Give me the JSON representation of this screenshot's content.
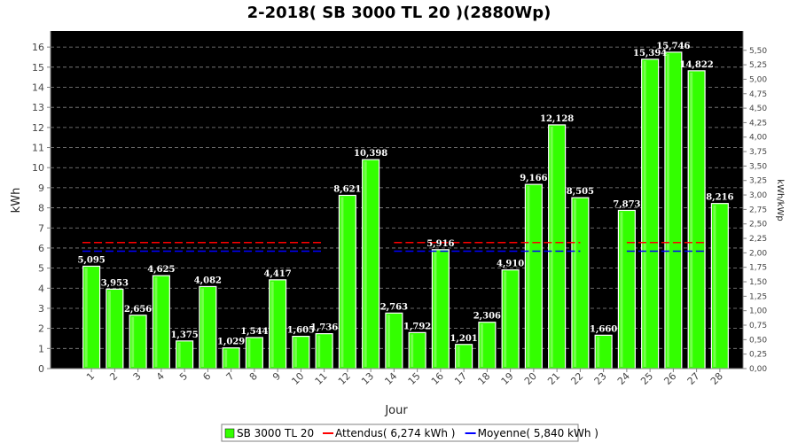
{
  "chart_data": {
    "type": "bar",
    "title": "2-2018( SB 3000 TL 20 )(2880Wp)",
    "xlabel": "Jour",
    "ylabel": "kWh",
    "ylabel_right": "kWh/kWp",
    "ylim": [
      0,
      16.8
    ],
    "y_ticks": [
      "0",
      "1",
      "2",
      "3",
      "4",
      "5",
      "6",
      "7",
      "8",
      "9",
      "10",
      "11",
      "12",
      "13",
      "14",
      "15",
      "16"
    ],
    "ylim_right": [
      0,
      5.8333
    ],
    "y_ticks_right": [
      "0,00",
      "0,25",
      "0,50",
      "0,75",
      "1,00",
      "1,25",
      "1,50",
      "1,75",
      "2,00",
      "2,25",
      "2,50",
      "2,75",
      "3,00",
      "3,25",
      "3,50",
      "3,75",
      "4,00",
      "4,25",
      "4,50",
      "4,75",
      "5,00",
      "5,25",
      "5,50"
    ],
    "grid": true,
    "categories": [
      "1",
      "2",
      "3",
      "4",
      "5",
      "6",
      "7",
      "8",
      "9",
      "10",
      "11",
      "12",
      "13",
      "14",
      "15",
      "16",
      "17",
      "18",
      "19",
      "20",
      "21",
      "22",
      "23",
      "24",
      "25",
      "26",
      "27",
      "28"
    ],
    "values": [
      5.095,
      3.953,
      2.656,
      4.625,
      1.375,
      4.082,
      1.029,
      1.544,
      4.417,
      1.605,
      1.736,
      8.621,
      10.398,
      2.763,
      1.792,
      5.916,
      1.201,
      2.306,
      4.91,
      9.166,
      12.128,
      8.505,
      1.66,
      7.873,
      15.394,
      15.746,
      14.822,
      8.216
    ],
    "value_labels": [
      "5,095",
      "3,953",
      "2,656",
      "4,625",
      "1,375",
      "4,082",
      "1,029",
      "1,544",
      "4,417",
      "1,605",
      "1,736",
      "8,621",
      "10,398",
      "2,763",
      "1,792",
      "5,916",
      "1,201",
      "2,306",
      "4,910",
      "9,166",
      "12,128",
      "8,505",
      "1,660",
      "7,873",
      "15,394",
      "15,746",
      "14,822",
      "8,216"
    ],
    "series": [
      {
        "name": "SB 3000 TL 20",
        "color": "#33ff00"
      }
    ],
    "reference_lines": [
      {
        "name": "Attendus( 6,274 kWh )",
        "value": 6.274,
        "color": "#ff0000"
      },
      {
        "name": "Moyenne( 5,840 kWh )",
        "value": 5.84,
        "color": "#0000ff"
      }
    ],
    "gaps": [
      {
        "line": 0,
        "from": 11,
        "to": 13
      },
      {
        "line": 1,
        "from": 11,
        "to": 13
      },
      {
        "line": 0,
        "from": 22,
        "to": 23
      },
      {
        "line": 1,
        "from": 22,
        "to": 23
      }
    ],
    "legend": "bottom",
    "plot_background": "#000000"
  }
}
